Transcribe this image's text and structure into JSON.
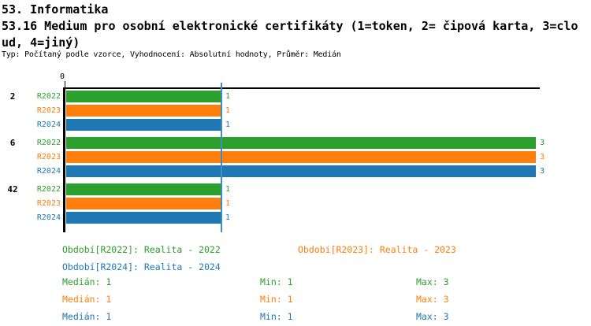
{
  "header": {
    "title": "53. Informatika",
    "subtitle_line1": "53.16 Medium pro osobní elektronické certifikáty (1=token, 2= čipová karta, 3=clo",
    "subtitle_line2": "ud, 4=jiný)",
    "meta": "Typ: Počítaný podle vzorce, Vyhodnocení: Absolutní hodnoty, Průměr: Medián"
  },
  "colors": {
    "r2022_green": "#2ca02c",
    "r2023_orange": "#ff7f0e",
    "r2024_blue": "#1f77b4",
    "median_line": "#3d8fc0",
    "axis": "#000000"
  },
  "chart_data": {
    "type": "bar",
    "orientation": "horizontal",
    "x_axis": {
      "zero_label": "0",
      "min": 0,
      "max_shown": 3
    },
    "median_reference_line_value": 1,
    "grid": false,
    "categories": [
      "2",
      "6",
      "42"
    ],
    "series": [
      {
        "name": "R2022",
        "color": "#2ca02c",
        "values": [
          1,
          3,
          1
        ]
      },
      {
        "name": "R2023",
        "color": "#ff7f0e",
        "values": [
          1,
          3,
          1
        ]
      },
      {
        "name": "R2024",
        "color": "#1f77b4",
        "values": [
          1,
          3,
          1
        ]
      }
    ]
  },
  "legend": {
    "r2022": "Období[R2022]: Realita - 2022",
    "r2023": "Období[R2023]: Realita - 2023",
    "r2024": "Období[R2024]: Realita - 2024"
  },
  "stats": {
    "rows": [
      {
        "series": "R2022",
        "median": "Medián: 1",
        "min": "Min: 1",
        "max": "Max: 3"
      },
      {
        "series": "R2023",
        "median": "Medián: 1",
        "min": "Min: 1",
        "max": "Max: 3"
      },
      {
        "series": "R2024",
        "median": "Medián: 1",
        "min": "Min: 1",
        "max": "Max: 3"
      }
    ]
  }
}
